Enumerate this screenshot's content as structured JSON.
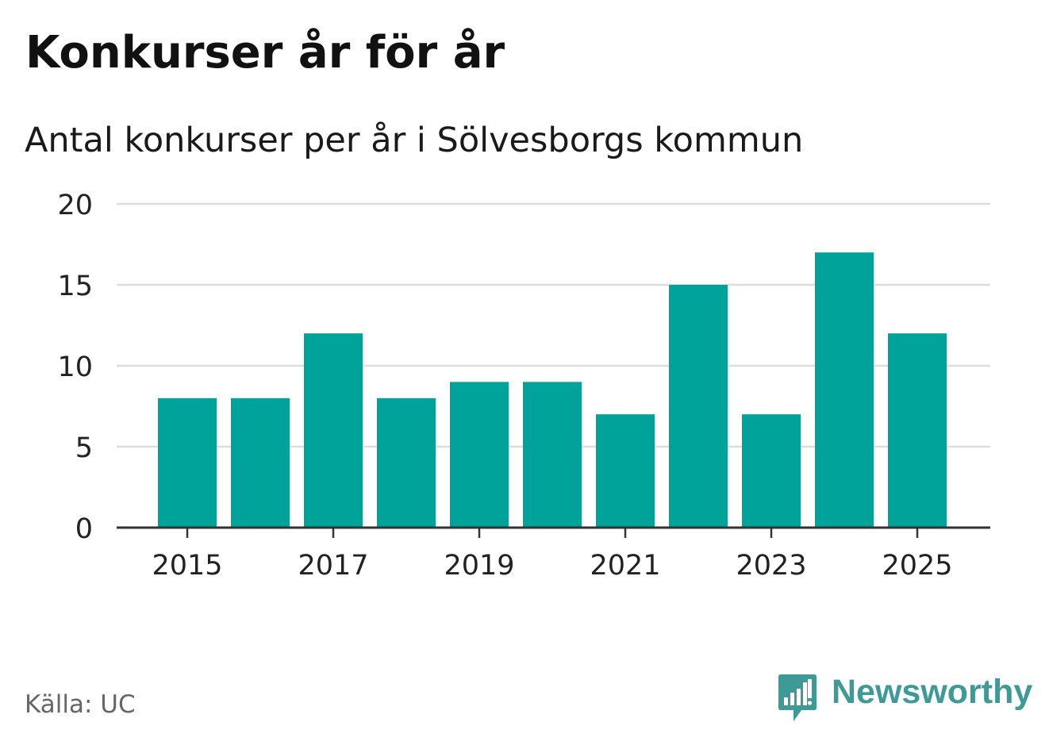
{
  "header": {
    "title": "Konkurser år för år",
    "subtitle": "Antal konkurser per år i Sölvesborgs kommun"
  },
  "footer": {
    "source": "Källa: UC",
    "brand": "Newsworthy",
    "brand_icon": "bar-chart-speech-bubble-icon"
  },
  "colors": {
    "bar": "#00a39a",
    "grid": "#dddddd",
    "axis": "#333333",
    "text": "#111111",
    "source": "#666666",
    "brand": "#3e9a96"
  },
  "chart_data": {
    "type": "bar",
    "categories": [
      "2015",
      "2016",
      "2017",
      "2018",
      "2019",
      "2020",
      "2021",
      "2022",
      "2023",
      "2024",
      "2025"
    ],
    "values": [
      8,
      8,
      12,
      8,
      9,
      9,
      7,
      15,
      7,
      17,
      12
    ],
    "x_tick_labels": [
      "2015",
      "2017",
      "2019",
      "2021",
      "2023",
      "2025"
    ],
    "y_ticks": [
      0,
      5,
      10,
      15,
      20
    ],
    "ylim": [
      0,
      20
    ],
    "grid": true,
    "legend": "none",
    "xlabel": "",
    "ylabel": ""
  }
}
